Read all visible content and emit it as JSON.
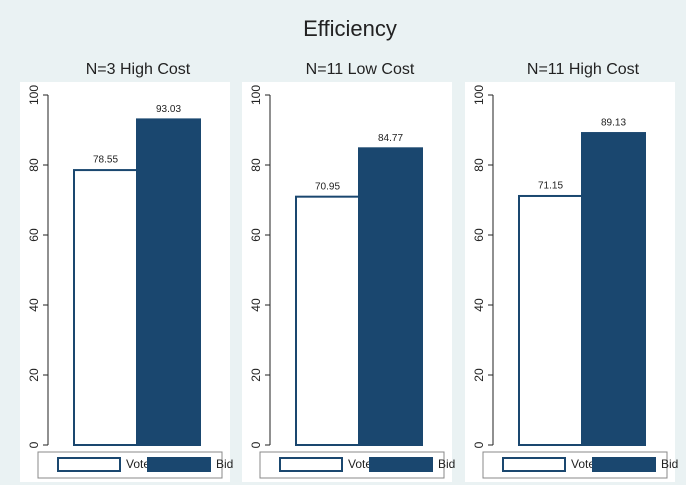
{
  "title": "Efficiency",
  "chart_data": [
    {
      "type": "bar",
      "title": "N=3 High Cost",
      "ylim": [
        0,
        100
      ],
      "yticks": [
        0,
        20,
        40,
        60,
        80,
        100
      ],
      "series": [
        {
          "name": "Vote",
          "color": "#ffffff",
          "edgecolor": "#1a476f",
          "values": [
            78.55
          ]
        },
        {
          "name": "Bid",
          "color": "#1a476f",
          "edgecolor": "#1a476f",
          "values": [
            93.03
          ]
        }
      ]
    },
    {
      "type": "bar",
      "title": "N=11 Low Cost",
      "ylim": [
        0,
        100
      ],
      "yticks": [
        0,
        20,
        40,
        60,
        80,
        100
      ],
      "series": [
        {
          "name": "Vote",
          "color": "#ffffff",
          "edgecolor": "#1a476f",
          "values": [
            70.95
          ]
        },
        {
          "name": "Bid",
          "color": "#1a476f",
          "edgecolor": "#1a476f",
          "values": [
            84.77
          ]
        }
      ]
    },
    {
      "type": "bar",
      "title": "N=11 High Cost",
      "ylim": [
        0,
        100
      ],
      "yticks": [
        0,
        20,
        40,
        60,
        80,
        100
      ],
      "series": [
        {
          "name": "Vote",
          "color": "#ffffff",
          "edgecolor": "#1a476f",
          "values": [
            71.15
          ]
        },
        {
          "name": "Bid",
          "color": "#1a476f",
          "edgecolor": "#1a476f",
          "values": [
            89.13
          ]
        }
      ]
    }
  ]
}
